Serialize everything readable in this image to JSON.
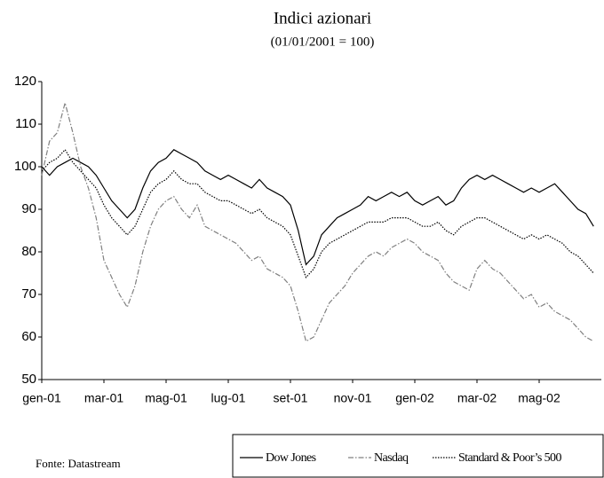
{
  "chart_data": {
    "type": "line",
    "title": "Indici azionari",
    "subtitle": "(01/01/2001 = 100)",
    "source": "Fonte: Datastream",
    "categories": [
      "gen-01",
      null,
      null,
      null,
      null,
      null,
      null,
      null,
      "mar-01",
      null,
      null,
      null,
      null,
      null,
      null,
      null,
      "mag-01",
      null,
      null,
      null,
      null,
      null,
      null,
      null,
      "lug-01",
      null,
      null,
      null,
      null,
      null,
      null,
      null,
      "set-01",
      null,
      null,
      null,
      null,
      null,
      null,
      null,
      "nov-01",
      null,
      null,
      null,
      null,
      null,
      null,
      null,
      "gen-02",
      null,
      null,
      null,
      null,
      null,
      null,
      null,
      "mar-02",
      null,
      null,
      null,
      null,
      null,
      null,
      null,
      "mag-02",
      null,
      null,
      null,
      null,
      null,
      null,
      null
    ],
    "ylim": [
      50,
      120
    ],
    "yticks": [
      50,
      60,
      70,
      80,
      90,
      100,
      110,
      120
    ],
    "series": [
      {
        "name": "Dow Jones",
        "color": "#000000",
        "dash": "solid",
        "values": [
          100,
          98,
          100,
          101,
          102,
          101,
          100,
          98,
          95,
          92,
          90,
          88,
          90,
          95,
          99,
          101,
          102,
          104,
          103,
          102,
          101,
          99,
          98,
          97,
          98,
          97,
          96,
          95,
          97,
          95,
          94,
          93,
          91,
          85,
          77,
          79,
          84,
          86,
          88,
          89,
          90,
          91,
          93,
          92,
          93,
          94,
          93,
          94,
          92,
          91,
          92,
          93,
          91,
          92,
          95,
          97,
          98,
          97,
          98,
          97,
          96,
          95,
          94,
          95,
          94,
          95,
          96,
          94,
          92,
          90,
          89,
          86
        ]
      },
      {
        "name": "Nasdaq",
        "color": "#808080",
        "dash": "dashdot",
        "values": [
          98,
          106,
          108,
          115,
          108,
          100,
          95,
          88,
          78,
          74,
          70,
          67,
          72,
          80,
          86,
          90,
          92,
          93,
          90,
          88,
          91,
          86,
          85,
          84,
          83,
          82,
          80,
          78,
          79,
          76,
          75,
          74,
          72,
          66,
          59,
          60,
          64,
          68,
          70,
          72,
          75,
          77,
          79,
          80,
          79,
          81,
          82,
          83,
          82,
          80,
          79,
          78,
          75,
          73,
          72,
          71,
          76,
          78,
          76,
          75,
          73,
          71,
          69,
          70,
          67,
          68,
          66,
          65,
          64,
          62,
          60,
          59
        ]
      },
      {
        "name": "Standard & Poor’s 500",
        "color": "#000000",
        "dash": "dotted",
        "values": [
          99,
          101,
          102,
          104,
          101,
          99,
          97,
          95,
          91,
          88,
          86,
          84,
          86,
          90,
          94,
          96,
          97,
          99,
          97,
          96,
          96,
          94,
          93,
          92,
          92,
          91,
          90,
          89,
          90,
          88,
          87,
          86,
          84,
          79,
          74,
          76,
          80,
          82,
          83,
          84,
          85,
          86,
          87,
          87,
          87,
          88,
          88,
          88,
          87,
          86,
          86,
          87,
          85,
          84,
          86,
          87,
          88,
          88,
          87,
          86,
          85,
          84,
          83,
          84,
          83,
          84,
          83,
          82,
          80,
          79,
          77,
          75
        ]
      }
    ]
  }
}
